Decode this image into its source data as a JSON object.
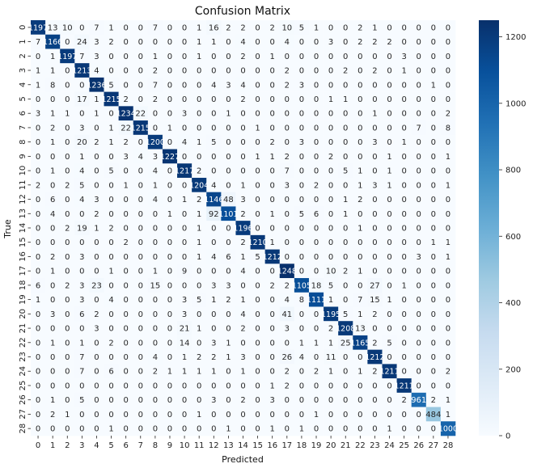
{
  "chart_data": {
    "type": "heatmap",
    "title": "Confusion Matrix",
    "xlabel": "Predicted",
    "ylabel": "True",
    "x_labels": [
      "0",
      "1",
      "2",
      "3",
      "4",
      "5",
      "6",
      "7",
      "8",
      "9",
      "10",
      "11",
      "12",
      "13",
      "14",
      "15",
      "16",
      "17",
      "18",
      "19",
      "20",
      "21",
      "22",
      "23",
      "24",
      "25",
      "26",
      "27",
      "28"
    ],
    "y_labels": [
      "0",
      "1",
      "2",
      "3",
      "4",
      "5",
      "6",
      "7",
      "8",
      "9",
      "10",
      "11",
      "12",
      "13",
      "14",
      "15",
      "16",
      "17",
      "18",
      "19",
      "20",
      "21",
      "22",
      "23",
      "24",
      "25",
      "26",
      "27",
      "28"
    ],
    "cell_labels": [
      [
        "1197",
        "13",
        "10",
        "0",
        "7",
        "1",
        "0",
        "0",
        "7",
        "0",
        "0",
        "1",
        "16",
        "2",
        "2",
        "0",
        "2",
        "10",
        "5",
        "1",
        "0",
        "0",
        "2",
        "1",
        "0",
        "0",
        "0",
        "0",
        "0"
      ],
      [
        "7",
        "1166",
        "0",
        "24",
        "3",
        "2",
        "0",
        "0",
        "0",
        "0",
        "0",
        "1",
        "1",
        "0",
        "4",
        "0",
        "0",
        "4",
        "0",
        "0",
        "3",
        "0",
        "2",
        "2",
        "2",
        "0",
        "0",
        "0",
        "0"
      ],
      [
        "0",
        "1",
        "1197",
        "7",
        "3",
        "0",
        "0",
        "0",
        "1",
        "0",
        "0",
        "1",
        "0",
        "0",
        "2",
        "0",
        "1",
        "0",
        "0",
        "0",
        "0",
        "0",
        "0",
        "0",
        "0",
        "3",
        "0",
        "0",
        "0"
      ],
      [
        "1",
        "1",
        "0",
        "1213",
        "4",
        "0",
        "0",
        "0",
        "2",
        "0",
        "0",
        "0",
        "0",
        "0",
        "0",
        "0",
        "0",
        "2",
        "0",
        "0",
        "0",
        "2",
        "0",
        "2",
        "0",
        "1",
        "0",
        "0",
        "0"
      ],
      [
        "1",
        "8",
        "0",
        "0",
        "1236",
        "5",
        "0",
        "0",
        "7",
        "0",
        "0",
        "0",
        "4",
        "3",
        "4",
        "0",
        "0",
        "2",
        "3",
        "0",
        "0",
        "0",
        "0",
        "0",
        "0",
        "0",
        "0",
        "1",
        "0"
      ],
      [
        "0",
        "0",
        "0",
        "17",
        "1",
        "1215",
        "2",
        "0",
        "2",
        "0",
        "0",
        "0",
        "0",
        "0",
        "2",
        "0",
        "0",
        "0",
        "0",
        "0",
        "1",
        "1",
        "0",
        "0",
        "0",
        "0",
        "0",
        "0",
        "0"
      ],
      [
        "3",
        "1",
        "1",
        "0",
        "1",
        "0",
        "1234",
        "22",
        "0",
        "0",
        "3",
        "0",
        "0",
        "1",
        "0",
        "0",
        "0",
        "0",
        "0",
        "0",
        "0",
        "0",
        "0",
        "1",
        "0",
        "0",
        "0",
        "0",
        "2"
      ],
      [
        "0",
        "2",
        "0",
        "3",
        "0",
        "1",
        "22",
        "1215",
        "0",
        "1",
        "0",
        "0",
        "0",
        "0",
        "0",
        "1",
        "0",
        "0",
        "0",
        "0",
        "0",
        "0",
        "0",
        "0",
        "0",
        "0",
        "7",
        "0",
        "8"
      ],
      [
        "0",
        "1",
        "0",
        "20",
        "2",
        "1",
        "2",
        "0",
        "1200",
        "0",
        "4",
        "1",
        "5",
        "0",
        "0",
        "0",
        "2",
        "0",
        "3",
        "0",
        "0",
        "0",
        "0",
        "3",
        "0",
        "1",
        "0",
        "0",
        "0"
      ],
      [
        "0",
        "0",
        "0",
        "1",
        "0",
        "0",
        "3",
        "4",
        "3",
        "1227",
        "0",
        "0",
        "0",
        "0",
        "0",
        "1",
        "1",
        "2",
        "0",
        "0",
        "2",
        "0",
        "0",
        "0",
        "1",
        "0",
        "0",
        "0",
        "1"
      ],
      [
        "0",
        "1",
        "0",
        "4",
        "0",
        "5",
        "0",
        "0",
        "4",
        "0",
        "1217",
        "2",
        "0",
        "0",
        "0",
        "0",
        "0",
        "7",
        "0",
        "0",
        "0",
        "5",
        "1",
        "0",
        "1",
        "0",
        "0",
        "0",
        "0"
      ],
      [
        "2",
        "0",
        "2",
        "5",
        "0",
        "0",
        "1",
        "0",
        "1",
        "0",
        "0",
        "1204",
        "4",
        "0",
        "1",
        "0",
        "0",
        "3",
        "0",
        "2",
        "0",
        "0",
        "1",
        "3",
        "1",
        "0",
        "0",
        "0",
        "1"
      ],
      [
        "0",
        "6",
        "0",
        "4",
        "3",
        "0",
        "0",
        "0",
        "4",
        "0",
        "1",
        "2",
        "1146",
        "48",
        "3",
        "0",
        "0",
        "0",
        "0",
        "0",
        "0",
        "1",
        "2",
        "0",
        "0",
        "0",
        "0",
        "0",
        "0"
      ],
      [
        "0",
        "4",
        "0",
        "0",
        "2",
        "0",
        "0",
        "0",
        "0",
        "1",
        "0",
        "1",
        "92",
        "1101",
        "2",
        "0",
        "1",
        "0",
        "5",
        "6",
        "0",
        "1",
        "0",
        "0",
        "0",
        "0",
        "0",
        "0",
        "0"
      ],
      [
        "0",
        "0",
        "2",
        "19",
        "1",
        "2",
        "0",
        "0",
        "0",
        "0",
        "0",
        "1",
        "0",
        "0",
        "1196",
        "0",
        "0",
        "0",
        "0",
        "0",
        "0",
        "0",
        "1",
        "0",
        "0",
        "0",
        "0",
        "0",
        "0"
      ],
      [
        "0",
        "0",
        "0",
        "0",
        "0",
        "0",
        "2",
        "0",
        "0",
        "0",
        "0",
        "1",
        "0",
        "0",
        "2",
        "1210",
        "1",
        "0",
        "0",
        "0",
        "0",
        "0",
        "0",
        "0",
        "0",
        "0",
        "0",
        "1",
        "1"
      ],
      [
        "0",
        "2",
        "0",
        "3",
        "0",
        "0",
        "0",
        "0",
        "0",
        "0",
        "0",
        "1",
        "4",
        "6",
        "1",
        "5",
        "1212",
        "0",
        "0",
        "0",
        "0",
        "0",
        "0",
        "0",
        "0",
        "0",
        "3",
        "0",
        "1"
      ],
      [
        "0",
        "1",
        "0",
        "0",
        "0",
        "1",
        "0",
        "0",
        "1",
        "0",
        "9",
        "0",
        "0",
        "0",
        "4",
        "0",
        "0",
        "1248",
        "0",
        "0",
        "10",
        "2",
        "1",
        "0",
        "0",
        "0",
        "0",
        "0",
        "0"
      ],
      [
        "6",
        "0",
        "2",
        "3",
        "23",
        "0",
        "0",
        "0",
        "15",
        "0",
        "0",
        "0",
        "3",
        "3",
        "0",
        "0",
        "2",
        "2",
        "1105",
        "18",
        "5",
        "0",
        "0",
        "27",
        "0",
        "1",
        "0",
        "0",
        "0"
      ],
      [
        "1",
        "0",
        "0",
        "3",
        "0",
        "4",
        "0",
        "0",
        "0",
        "0",
        "3",
        "5",
        "1",
        "2",
        "1",
        "0",
        "0",
        "4",
        "8",
        "1111",
        "1",
        "0",
        "7",
        "15",
        "1",
        "0",
        "0",
        "0",
        "0"
      ],
      [
        "0",
        "3",
        "0",
        "6",
        "2",
        "0",
        "0",
        "0",
        "0",
        "0",
        "3",
        "0",
        "0",
        "0",
        "4",
        "0",
        "0",
        "41",
        "0",
        "0",
        "1195",
        "5",
        "1",
        "2",
        "0",
        "0",
        "0",
        "0",
        "0"
      ],
      [
        "0",
        "0",
        "0",
        "0",
        "3",
        "0",
        "0",
        "0",
        "0",
        "0",
        "21",
        "1",
        "0",
        "0",
        "2",
        "0",
        "0",
        "3",
        "0",
        "0",
        "2",
        "1208",
        "13",
        "0",
        "0",
        "0",
        "0",
        "0",
        "0"
      ],
      [
        "0",
        "1",
        "0",
        "1",
        "0",
        "2",
        "0",
        "0",
        "0",
        "0",
        "14",
        "0",
        "3",
        "1",
        "0",
        "0",
        "0",
        "0",
        "1",
        "1",
        "1",
        "25",
        "1165",
        "2",
        "5",
        "0",
        "0",
        "0",
        "0"
      ],
      [
        "0",
        "0",
        "0",
        "7",
        "0",
        "0",
        "0",
        "0",
        "4",
        "0",
        "1",
        "2",
        "2",
        "1",
        "3",
        "0",
        "0",
        "26",
        "4",
        "0",
        "11",
        "0",
        "0",
        "1212",
        "0",
        "0",
        "0",
        "0",
        "0"
      ],
      [
        "0",
        "0",
        "0",
        "7",
        "0",
        "6",
        "0",
        "0",
        "2",
        "1",
        "1",
        "1",
        "1",
        "0",
        "1",
        "0",
        "0",
        "2",
        "0",
        "2",
        "1",
        "0",
        "1",
        "2",
        "1211",
        "0",
        "0",
        "0",
        "2"
      ],
      [
        "0",
        "0",
        "0",
        "0",
        "0",
        "0",
        "0",
        "0",
        "0",
        "0",
        "0",
        "0",
        "0",
        "0",
        "0",
        "0",
        "1",
        "2",
        "0",
        "0",
        "0",
        "0",
        "0",
        "0",
        "0",
        "1211",
        "0",
        "0",
        "0"
      ],
      [
        "0",
        "1",
        "0",
        "5",
        "0",
        "0",
        "0",
        "0",
        "0",
        "0",
        "0",
        "0",
        "3",
        "0",
        "2",
        "0",
        "3",
        "0",
        "0",
        "0",
        "0",
        "0",
        "0",
        "0",
        "0",
        "2",
        "961",
        "2",
        "1"
      ],
      [
        "0",
        "2",
        "1",
        "0",
        "0",
        "0",
        "0",
        "0",
        "0",
        "0",
        "0",
        "1",
        "0",
        "0",
        "0",
        "0",
        "0",
        "0",
        "0",
        "1",
        "0",
        "0",
        "0",
        "0",
        "0",
        "0",
        "0",
        "484",
        "1"
      ],
      [
        "0",
        "0",
        "0",
        "0",
        "0",
        "1",
        "0",
        "0",
        "0",
        "0",
        "0",
        "0",
        "0",
        "1",
        "0",
        "0",
        "1",
        "0",
        "1",
        "0",
        "0",
        "0",
        "0",
        "0",
        "1",
        "0",
        "0",
        "0",
        "1000"
      ]
    ],
    "colorbar": {
      "min": 0,
      "max": 1250,
      "ticks": [
        0,
        200,
        400,
        600,
        800,
        1000,
        1200
      ]
    },
    "colormap": [
      "#f7fbff",
      "#deebf7",
      "#c6dbef",
      "#9ecae1",
      "#6baed6",
      "#4292c6",
      "#2171b5",
      "#08519c",
      "#08306b"
    ]
  }
}
